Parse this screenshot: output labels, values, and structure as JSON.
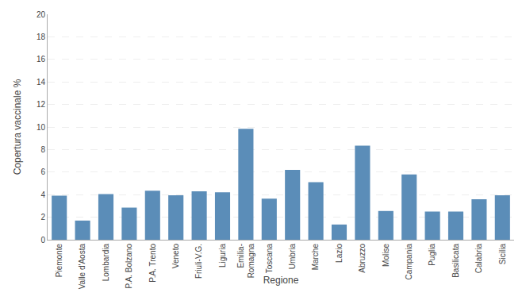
{
  "chart_data": {
    "type": "bar",
    "categories": [
      "Piemonte",
      "Valle d'Aosta",
      "Lombardia",
      "P.A. Bolzano",
      "P.A. Trento",
      "Veneto",
      "Friuli-V.G.",
      "Liguria",
      "Emilia-\nRomagna",
      "Toscana",
      "Umbria",
      "Marche",
      "Lazio",
      "Abruzzo",
      "Molise",
      "Campania",
      "Puglia",
      "Basilicata",
      "Calabria",
      "Sicilia"
    ],
    "values": [
      3.9,
      1.7,
      4.05,
      2.85,
      4.35,
      3.95,
      4.3,
      4.2,
      9.85,
      3.65,
      6.2,
      5.1,
      1.35,
      8.35,
      2.55,
      5.8,
      2.5,
      2.5,
      3.6,
      3.95
    ],
    "color": "#5b8db8",
    "xlabel": "Regione",
    "ylabel": "Copertura vaccinale %",
    "ylim": [
      0,
      20
    ],
    "yticks": [
      0,
      2,
      4,
      6,
      8,
      10,
      12,
      14,
      16,
      18,
      20
    ],
    "grid": true
  }
}
